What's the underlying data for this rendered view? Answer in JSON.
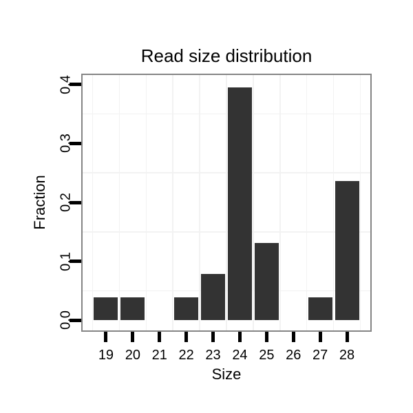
{
  "chart_data": {
    "type": "bar",
    "title": "Read size distribution",
    "xlabel": "Size",
    "ylabel": "Fraction",
    "categories": [
      "19",
      "20",
      "21",
      "22",
      "23",
      "24",
      "25",
      "26",
      "27",
      "28"
    ],
    "values": [
      0.0395,
      0.0395,
      0,
      0.0395,
      0.0789,
      0.3947,
      0.1316,
      0,
      0.0395,
      0.2368
    ],
    "yticks": [
      0,
      0.1,
      0.2,
      0.3,
      0.4
    ],
    "ytick_labels": [
      "0.0",
      "0.1",
      "0.2",
      "0.3",
      "0.4"
    ],
    "y_minor_gridlines": [
      0.05,
      0.15,
      0.25,
      0.35
    ],
    "ylim": [
      -0.017,
      0.416
    ],
    "grid": true,
    "legend": "none",
    "colors": {
      "bar": "#333333",
      "panel_border": "#848484",
      "gridline": "#f2f2f2",
      "tick": "#000000",
      "text": "#000000",
      "background": "#ffffff"
    }
  }
}
